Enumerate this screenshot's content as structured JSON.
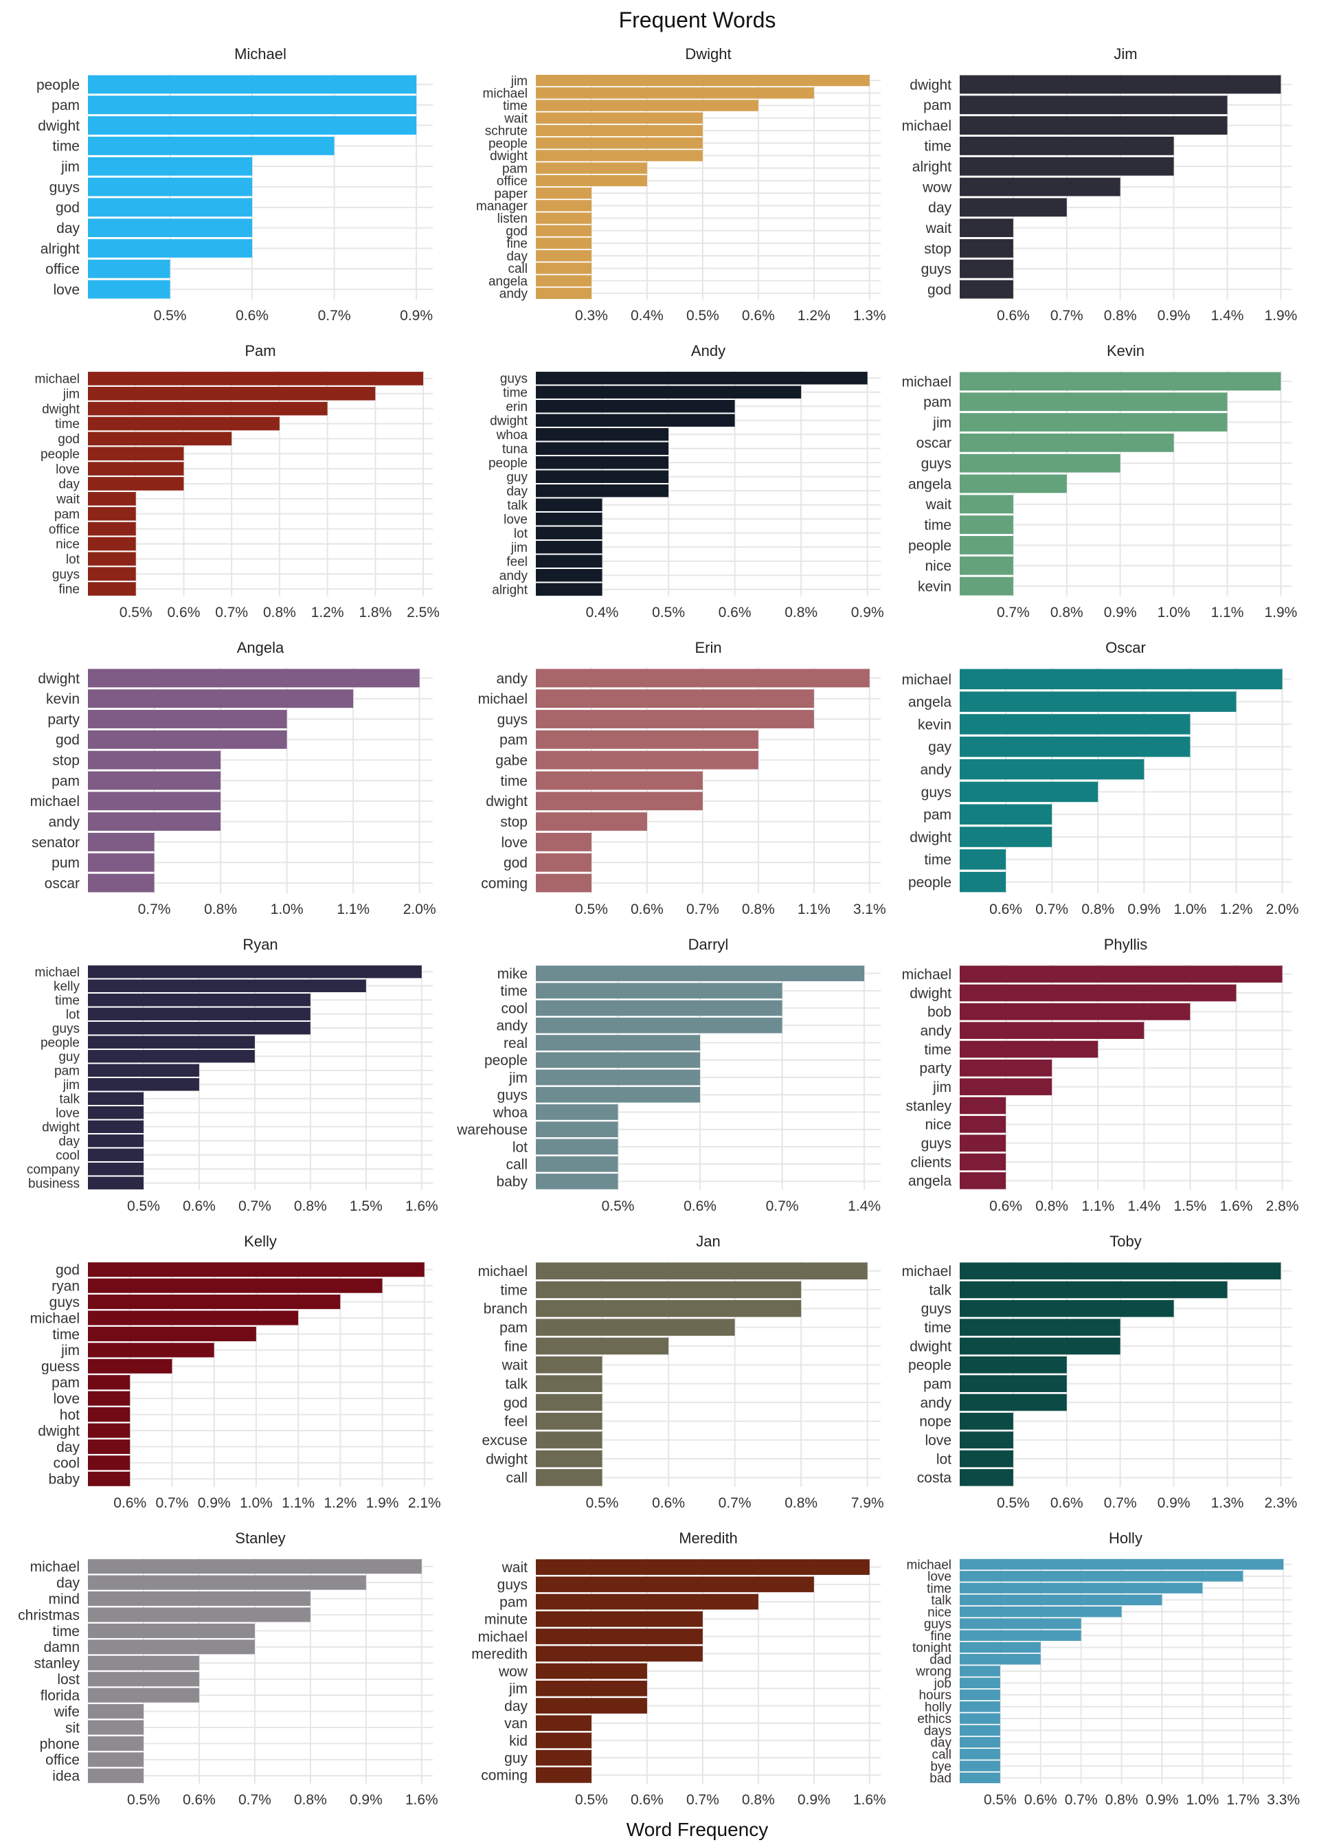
{
  "chart_data": {
    "type": "bar",
    "orientation": "horizontal",
    "title": "Frequent Words",
    "xlabel": "Word Frequency",
    "grid": true,
    "legend": "none",
    "panels": [
      {
        "name": "Michael",
        "color": "#29b5f0",
        "categories": [
          "people",
          "pam",
          "dwight",
          "time",
          "jim",
          "guys",
          "god",
          "day",
          "alright",
          "office",
          "love"
        ],
        "values": [
          4,
          4,
          4,
          3,
          2,
          2,
          2,
          2,
          2,
          1,
          1
        ],
        "ticks": [
          "0.5%",
          "0.6%",
          "0.7%",
          "0.9%"
        ]
      },
      {
        "name": "Dwight",
        "color": "#d4a050",
        "categories": [
          "jim",
          "michael",
          "time",
          "wait",
          "schrute",
          "people",
          "dwight",
          "pam",
          "office",
          "paper",
          "manager",
          "listen",
          "god",
          "fine",
          "day",
          "call",
          "angela",
          "andy"
        ],
        "values": [
          6,
          5,
          4,
          3,
          3,
          3,
          3,
          2,
          2,
          1,
          1,
          1,
          1,
          1,
          1,
          1,
          1,
          1
        ],
        "ticks": [
          "0.3%",
          "0.4%",
          "0.5%",
          "0.6%",
          "1.2%",
          "1.3%"
        ]
      },
      {
        "name": "Jim",
        "color": "#2d2c39",
        "categories": [
          "dwight",
          "pam",
          "michael",
          "time",
          "alright",
          "wow",
          "day",
          "wait",
          "stop",
          "guys",
          "god"
        ],
        "values": [
          6,
          5,
          5,
          4,
          4,
          3,
          2,
          1,
          1,
          1,
          1
        ],
        "ticks": [
          "0.6%",
          "0.7%",
          "0.8%",
          "0.9%",
          "1.4%",
          "1.9%"
        ]
      },
      {
        "name": "Pam",
        "color": "#8c2518",
        "categories": [
          "michael",
          "jim",
          "dwight",
          "time",
          "god",
          "people",
          "love",
          "day",
          "wait",
          "pam",
          "office",
          "nice",
          "lot",
          "guys",
          "fine"
        ],
        "values": [
          7,
          6,
          5,
          4,
          3,
          2,
          2,
          2,
          1,
          1,
          1,
          1,
          1,
          1,
          1
        ],
        "ticks": [
          "0.5%",
          "0.6%",
          "0.7%",
          "0.8%",
          "1.2%",
          "1.8%",
          "2.5%"
        ]
      },
      {
        "name": "Andy",
        "color": "#121a27",
        "categories": [
          "guys",
          "time",
          "erin",
          "dwight",
          "whoa",
          "tuna",
          "people",
          "guy",
          "day",
          "talk",
          "love",
          "lot",
          "jim",
          "feel",
          "andy",
          "alright"
        ],
        "values": [
          5,
          4,
          3,
          3,
          2,
          2,
          2,
          2,
          2,
          1,
          1,
          1,
          1,
          1,
          1,
          1
        ],
        "ticks": [
          "0.4%",
          "0.5%",
          "0.6%",
          "0.8%",
          "0.9%"
        ]
      },
      {
        "name": "Kevin",
        "color": "#64a27c",
        "categories": [
          "michael",
          "pam",
          "jim",
          "oscar",
          "guys",
          "angela",
          "wait",
          "time",
          "people",
          "nice",
          "kevin"
        ],
        "values": [
          6,
          5,
          5,
          4,
          3,
          2,
          1,
          1,
          1,
          1,
          1
        ],
        "ticks": [
          "0.7%",
          "0.8%",
          "0.9%",
          "1.0%",
          "1.1%",
          "1.9%"
        ]
      },
      {
        "name": "Angela",
        "color": "#7e5c85",
        "categories": [
          "dwight",
          "kevin",
          "party",
          "god",
          "stop",
          "pam",
          "michael",
          "andy",
          "senator",
          "pum",
          "oscar"
        ],
        "values": [
          5,
          4,
          3,
          3,
          2,
          2,
          2,
          2,
          1,
          1,
          1
        ],
        "ticks": [
          "0.7%",
          "0.8%",
          "1.0%",
          "1.1%",
          "2.0%"
        ]
      },
      {
        "name": "Erin",
        "color": "#a9666a",
        "categories": [
          "andy",
          "michael",
          "guys",
          "pam",
          "gabe",
          "time",
          "dwight",
          "stop",
          "love",
          "god",
          "coming"
        ],
        "values": [
          6,
          5,
          5,
          4,
          4,
          3,
          3,
          2,
          1,
          1,
          1
        ],
        "ticks": [
          "0.5%",
          "0.6%",
          "0.7%",
          "0.8%",
          "1.1%",
          "3.1%"
        ]
      },
      {
        "name": "Oscar",
        "color": "#147f80",
        "categories": [
          "michael",
          "angela",
          "kevin",
          "gay",
          "andy",
          "guys",
          "pam",
          "dwight",
          "time",
          "people"
        ],
        "values": [
          7,
          6,
          5,
          5,
          4,
          3,
          2,
          2,
          1,
          1
        ],
        "ticks": [
          "0.6%",
          "0.7%",
          "0.8%",
          "0.9%",
          "1.0%",
          "1.2%",
          "2.0%"
        ]
      },
      {
        "name": "Ryan",
        "color": "#2a2845",
        "categories": [
          "michael",
          "kelly",
          "time",
          "lot",
          "guys",
          "people",
          "guy",
          "pam",
          "jim",
          "talk",
          "love",
          "dwight",
          "day",
          "cool",
          "company",
          "business"
        ],
        "values": [
          6,
          5,
          4,
          4,
          4,
          3,
          3,
          2,
          2,
          1,
          1,
          1,
          1,
          1,
          1,
          1
        ],
        "ticks": [
          "0.5%",
          "0.6%",
          "0.7%",
          "0.8%",
          "1.5%",
          "1.6%"
        ]
      },
      {
        "name": "Darryl",
        "color": "#6d8c92",
        "categories": [
          "mike",
          "time",
          "cool",
          "andy",
          "real",
          "people",
          "jim",
          "guys",
          "whoa",
          "warehouse",
          "lot",
          "call",
          "baby"
        ],
        "values": [
          4,
          3,
          3,
          3,
          2,
          2,
          2,
          2,
          1,
          1,
          1,
          1,
          1
        ],
        "ticks": [
          "0.5%",
          "0.6%",
          "0.7%",
          "1.4%"
        ]
      },
      {
        "name": "Phyllis",
        "color": "#7d1c36",
        "categories": [
          "michael",
          "dwight",
          "bob",
          "andy",
          "time",
          "party",
          "jim",
          "stanley",
          "nice",
          "guys",
          "clients",
          "angela"
        ],
        "values": [
          7,
          6,
          5,
          4,
          3,
          2,
          2,
          1,
          1,
          1,
          1,
          1
        ],
        "ticks": [
          "0.6%",
          "0.8%",
          "1.1%",
          "1.4%",
          "1.5%",
          "1.6%",
          "2.8%"
        ]
      },
      {
        "name": "Kelly",
        "color": "#720a16",
        "categories": [
          "god",
          "ryan",
          "guys",
          "michael",
          "time",
          "jim",
          "guess",
          "pam",
          "love",
          "hot",
          "dwight",
          "day",
          "cool",
          "baby"
        ],
        "values": [
          8,
          7,
          6,
          5,
          4,
          3,
          2,
          1,
          1,
          1,
          1,
          1,
          1,
          1
        ],
        "ticks": [
          "0.6%",
          "0.7%",
          "0.9%",
          "1.0%",
          "1.1%",
          "1.2%",
          "1.9%",
          "2.1%"
        ]
      },
      {
        "name": "Jan",
        "color": "#6c6a53",
        "categories": [
          "michael",
          "time",
          "branch",
          "pam",
          "fine",
          "wait",
          "talk",
          "god",
          "feel",
          "excuse",
          "dwight",
          "call"
        ],
        "values": [
          5,
          4,
          4,
          3,
          2,
          1,
          1,
          1,
          1,
          1,
          1,
          1
        ],
        "ticks": [
          "0.5%",
          "0.6%",
          "0.7%",
          "0.8%",
          "7.9%"
        ]
      },
      {
        "name": "Toby",
        "color": "#0c4a45",
        "categories": [
          "michael",
          "talk",
          "guys",
          "time",
          "dwight",
          "people",
          "pam",
          "andy",
          "nope",
          "love",
          "lot",
          "costa"
        ],
        "values": [
          6,
          5,
          4,
          3,
          3,
          2,
          2,
          2,
          1,
          1,
          1,
          1
        ],
        "ticks": [
          "0.5%",
          "0.6%",
          "0.7%",
          "0.9%",
          "1.3%",
          "2.3%"
        ]
      },
      {
        "name": "Stanley",
        "color": "#8d8b8f",
        "categories": [
          "michael",
          "day",
          "mind",
          "christmas",
          "time",
          "damn",
          "stanley",
          "lost",
          "florida",
          "wife",
          "sit",
          "phone",
          "office",
          "idea"
        ],
        "values": [
          6,
          5,
          4,
          4,
          3,
          3,
          2,
          2,
          2,
          1,
          1,
          1,
          1,
          1
        ],
        "ticks": [
          "0.5%",
          "0.6%",
          "0.7%",
          "0.8%",
          "0.9%",
          "1.6%"
        ]
      },
      {
        "name": "Meredith",
        "color": "#6a2410",
        "categories": [
          "wait",
          "guys",
          "pam",
          "minute",
          "michael",
          "meredith",
          "wow",
          "jim",
          "day",
          "van",
          "kid",
          "guy",
          "coming"
        ],
        "values": [
          6,
          5,
          4,
          3,
          3,
          3,
          2,
          2,
          2,
          1,
          1,
          1,
          1
        ],
        "ticks": [
          "0.5%",
          "0.6%",
          "0.7%",
          "0.8%",
          "0.9%",
          "1.6%"
        ]
      },
      {
        "name": "Holly",
        "color": "#4a9bb9",
        "categories": [
          "michael",
          "love",
          "time",
          "talk",
          "nice",
          "guys",
          "fine",
          "tonight",
          "dad",
          "wrong",
          "job",
          "hours",
          "holly",
          "ethics",
          "days",
          "day",
          "call",
          "bye",
          "bad"
        ],
        "values": [
          8,
          7,
          6,
          5,
          4,
          3,
          3,
          2,
          2,
          1,
          1,
          1,
          1,
          1,
          1,
          1,
          1,
          1,
          1
        ],
        "ticks": [
          "0.5%",
          "0.6%",
          "0.7%",
          "0.8%",
          "0.9%",
          "1.0%",
          "1.7%",
          "3.3%"
        ]
      }
    ]
  }
}
